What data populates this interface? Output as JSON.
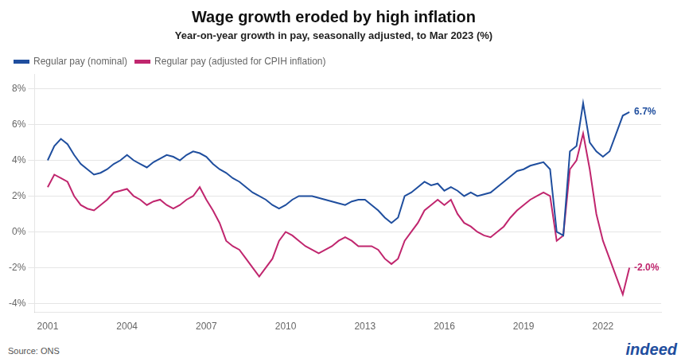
{
  "chart_data": {
    "type": "line",
    "title": "Wage growth eroded by high inflation",
    "subtitle": "Year-on-year growth in pay, seasonally adjusted, to Mar 2023 (%)",
    "source": "Source: ONS",
    "credit": "indeed",
    "xlim": [
      2000.5,
      2024.2
    ],
    "xticks": [
      2001,
      2004,
      2007,
      2010,
      2013,
      2016,
      2019,
      2022
    ],
    "ylim": [
      -4.5,
      8.8
    ],
    "yticks": [
      {
        "value": -4,
        "label": "-4%"
      },
      {
        "value": -2,
        "label": "-2%"
      },
      {
        "value": 0,
        "label": "0%"
      },
      {
        "value": 2,
        "label": "2%"
      },
      {
        "value": 4,
        "label": "4%"
      },
      {
        "value": 6,
        "label": "6%"
      },
      {
        "value": 8,
        "label": "8%"
      }
    ],
    "grid": "y",
    "legend": "upper left",
    "x": [
      2001.0,
      2001.25,
      2001.5,
      2001.75,
      2002.0,
      2002.25,
      2002.5,
      2002.75,
      2003.0,
      2003.25,
      2003.5,
      2003.75,
      2004.0,
      2004.25,
      2004.5,
      2004.75,
      2005.0,
      2005.25,
      2005.5,
      2005.75,
      2006.0,
      2006.25,
      2006.5,
      2006.75,
      2007.0,
      2007.25,
      2007.5,
      2007.75,
      2008.0,
      2008.25,
      2008.5,
      2008.75,
      2009.0,
      2009.25,
      2009.5,
      2009.75,
      2010.0,
      2010.25,
      2010.5,
      2010.75,
      2011.0,
      2011.25,
      2011.5,
      2011.75,
      2012.0,
      2012.25,
      2012.5,
      2012.75,
      2013.0,
      2013.25,
      2013.5,
      2013.75,
      2014.0,
      2014.25,
      2014.5,
      2014.75,
      2015.0,
      2015.25,
      2015.5,
      2015.75,
      2016.0,
      2016.25,
      2016.5,
      2016.75,
      2017.0,
      2017.25,
      2017.5,
      2017.75,
      2018.0,
      2018.25,
      2018.5,
      2018.75,
      2019.0,
      2019.25,
      2019.5,
      2019.75,
      2020.0,
      2020.25,
      2020.5,
      2020.75,
      2021.0,
      2021.25,
      2021.5,
      2021.75,
      2022.0,
      2022.25,
      2022.5,
      2022.75,
      2023.0
    ],
    "series": [
      {
        "name": "Regular pay (nominal)",
        "color": "#1f4e9e",
        "values": [
          4.0,
          4.8,
          5.2,
          4.9,
          4.3,
          3.8,
          3.5,
          3.2,
          3.3,
          3.5,
          3.8,
          4.0,
          4.3,
          4.0,
          3.8,
          3.6,
          3.9,
          4.1,
          4.3,
          4.2,
          4.0,
          4.3,
          4.5,
          4.4,
          4.2,
          3.8,
          3.5,
          3.3,
          3.0,
          2.8,
          2.5,
          2.2,
          2.0,
          1.8,
          1.5,
          1.3,
          1.5,
          1.8,
          2.0,
          2.0,
          2.0,
          1.9,
          1.8,
          1.7,
          1.6,
          1.5,
          1.7,
          1.8,
          1.8,
          1.5,
          1.2,
          0.8,
          0.5,
          0.8,
          2.0,
          2.2,
          2.5,
          2.8,
          2.6,
          2.7,
          2.3,
          2.5,
          2.3,
          2.0,
          2.2,
          2.0,
          2.1,
          2.2,
          2.5,
          2.8,
          3.1,
          3.4,
          3.5,
          3.7,
          3.8,
          3.9,
          3.5,
          0.0,
          -0.2,
          4.5,
          4.8,
          7.2,
          5.0,
          4.5,
          4.2,
          4.5,
          5.5,
          6.5,
          6.7
        ],
        "annotation": {
          "text": "6.7%",
          "x": 2023.0,
          "y": 6.7
        }
      },
      {
        "name": "Regular pay (adjusted for CPIH inflation)",
        "color": "#c0266e",
        "values": [
          2.5,
          3.2,
          3.0,
          2.8,
          2.0,
          1.5,
          1.3,
          1.2,
          1.5,
          1.8,
          2.2,
          2.3,
          2.4,
          2.0,
          1.8,
          1.5,
          1.7,
          1.8,
          1.5,
          1.3,
          1.5,
          1.8,
          2.0,
          2.5,
          1.8,
          1.2,
          0.5,
          -0.5,
          -0.8,
          -1.0,
          -1.5,
          -2.0,
          -2.5,
          -2.0,
          -1.5,
          -0.5,
          0.0,
          -0.2,
          -0.5,
          -0.8,
          -1.0,
          -1.2,
          -1.0,
          -0.8,
          -0.5,
          -0.3,
          -0.5,
          -0.8,
          -0.8,
          -0.8,
          -1.0,
          -1.5,
          -1.8,
          -1.5,
          -0.5,
          0.0,
          0.5,
          1.2,
          1.5,
          1.8,
          1.5,
          1.8,
          1.0,
          0.5,
          0.3,
          0.0,
          -0.2,
          -0.3,
          0.0,
          0.3,
          0.8,
          1.2,
          1.5,
          1.8,
          2.0,
          2.2,
          2.0,
          -0.5,
          -0.2,
          3.5,
          4.0,
          5.5,
          3.5,
          1.0,
          -0.5,
          -1.5,
          -2.5,
          -3.5,
          -2.0
        ],
        "annotation": {
          "text": "-2.0%",
          "x": 2023.0,
          "y": -2.0
        }
      }
    ]
  }
}
